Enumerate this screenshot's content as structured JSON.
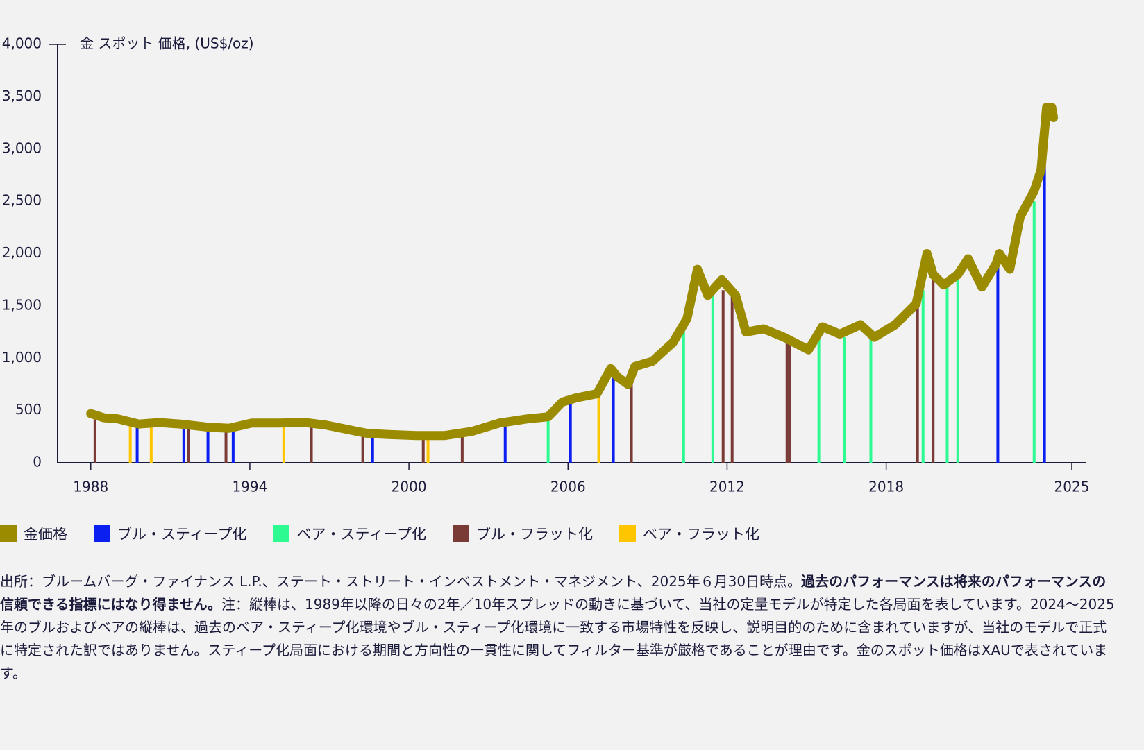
{
  "chart_data": {
    "type": "line",
    "y_axis_title": "金 スポット 価格, (US$/oz)",
    "xlim": [
      1986.75,
      2025.55
    ],
    "xticks": [
      1988,
      1994,
      2000,
      2006,
      2012,
      2018,
      2025
    ],
    "ylim": [
      0,
      4000
    ],
    "yticks": [
      0,
      500,
      {
        "value": 1000,
        "label": "1,000"
      },
      {
        "value": 1500,
        "label": "1,500"
      },
      {
        "value": 2000,
        "label": "2,000"
      },
      {
        "value": 2500,
        "label": "2,500"
      },
      {
        "value": 3000,
        "label": "3,000"
      },
      {
        "value": 3500,
        "label": "3,500"
      },
      {
        "value": 4000,
        "label": "4,000"
      }
    ],
    "series": [
      {
        "name": "金価格",
        "color": "#9a8b00",
        "type": "line",
        "x": [
          1988.0,
          1988.5,
          1989.02,
          1989.81,
          1990.59,
          1991.38,
          1992.43,
          1993.21,
          1994.08,
          1995.04,
          1996.09,
          1996.88,
          1997.66,
          1998.45,
          1999.23,
          2000.28,
          2001.33,
          2002.37,
          2003.42,
          2004.47,
          2005.25,
          2005.78,
          2006.3,
          2007.09,
          2007.61,
          2007.87,
          2008.26,
          2008.52,
          2009.18,
          2009.96,
          2010.49,
          2010.88,
          2011.27,
          2011.8,
          2012.32,
          2012.71,
          2013.37,
          2014.15,
          2015.07,
          2015.59,
          2016.25,
          2017.03,
          2017.55,
          2018.34,
          2019.13,
          2019.54,
          2019.77,
          2020.17,
          2020.7,
          2021.09,
          2021.61,
          2022.14,
          2022.27,
          2022.66,
          2023.05,
          2023.58,
          2023.84,
          2024.05,
          2024.24,
          2024.31
        ],
        "values": [
          470,
          430,
          420,
          370,
          385,
          370,
          340,
          330,
          380,
          380,
          385,
          360,
          320,
          280,
          270,
          260,
          260,
          300,
          380,
          420,
          440,
          580,
          620,
          660,
          900,
          820,
          750,
          920,
          970,
          1150,
          1380,
          1850,
          1600,
          1750,
          1600,
          1250,
          1280,
          1200,
          1080,
          1300,
          1230,
          1320,
          1200,
          1320,
          1520,
          2000,
          1800,
          1700,
          1800,
          1950,
          1680,
          1900,
          2000,
          1850,
          2350,
          2600,
          2800,
          3400,
          3400,
          3300
        ]
      },
      {
        "name": "ブル・スティープ化",
        "color": "#0a1ff0",
        "type": "bar",
        "x": [
          1989.75,
          1991.51,
          1992.42,
          1993.37,
          1998.63,
          2003.63,
          2006.09,
          2007.71,
          2022.21,
          2023.97
        ],
        "values": [
          360,
          330,
          320,
          380,
          250,
          380,
          620,
          830,
          1900,
          2850
        ]
      },
      {
        "name": "ベア・スティープ化",
        "color": "#2dfa90",
        "type": "bar",
        "x": [
          2005.25,
          2010.36,
          2011.46,
          2015.46,
          2016.43,
          2017.42,
          2019.39,
          2020.3,
          2020.7,
          2023.58
        ],
        "values": [
          400,
          1300,
          1650,
          1200,
          1200,
          1280,
          1650,
          1700,
          1750,
          2500
        ]
      },
      {
        "name": "ブル・フラット化",
        "color": "#7a3a36",
        "type": "bar",
        "x": [
          1988.16,
          1991.69,
          1993.1,
          1996.32,
          1998.26,
          2000.54,
          2002.01,
          2008.39,
          2011.85,
          2012.19,
          2014.26,
          2014.36,
          2019.18,
          2019.77
        ],
        "values": [
          420,
          330,
          320,
          370,
          290,
          260,
          300,
          820,
          1650,
          1600,
          1150,
          1150,
          1500,
          1750
        ]
      },
      {
        "name": "ベア・フラット化",
        "color": "#ffc600",
        "type": "bar",
        "x": [
          1989.49,
          1990.28,
          1995.28,
          2000.72,
          2007.16
        ],
        "values": [
          350,
          370,
          370,
          250,
          650
        ]
      }
    ],
    "footnote": {
      "source": "出所：ブルームバーグ・ファイナンス L.P.、ステート・ストリート・インベストメント・マネジメント、2025年６月30日時点。",
      "bold": "過去のパフォーマンスは将来のパフォーマンスの信頼できる指標にはなり得ません。",
      "note": "注：縦棒は、1989年以降の日々の2年／10年スプレッドの動きに基づいて、当社の定量モデルが特定した各局面を表しています。2024〜2025年のブルおよびベアの縦棒は、過去のベア・スティープ化環境やブル・スティープ化環境に一致する市場特性を反映し、説明目的のために含まれていますが、当社のモデルで正式に特定された訳ではありません。スティープ化局面における期間と方向性の一貫性に関してフィルター基準が厳格であることが理由です。金のスポット価格はXAUで表されています。"
    }
  }
}
